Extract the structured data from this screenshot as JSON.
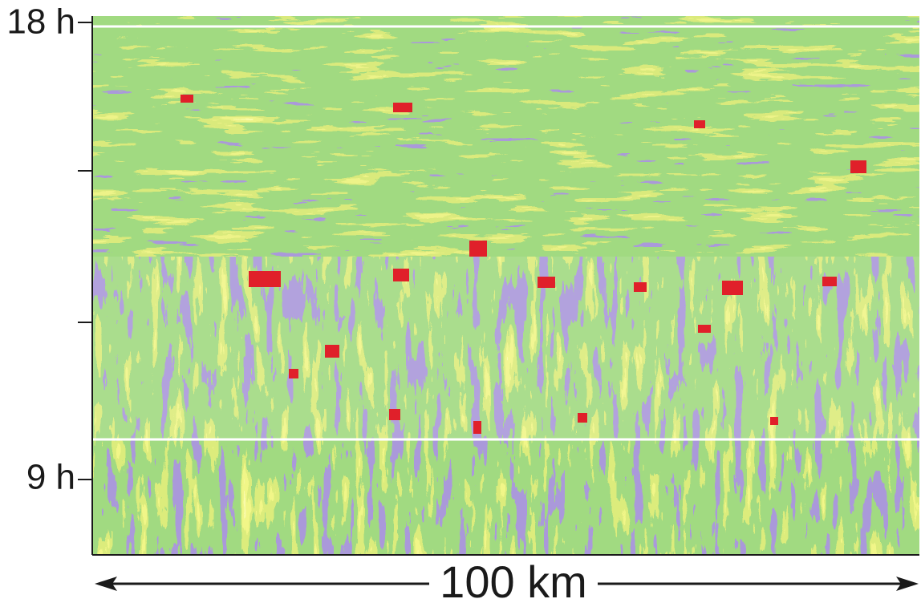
{
  "y_axis": {
    "top_label": "18 h",
    "bottom_label": "9 h"
  },
  "scale_bar": {
    "label": "100 km"
  }
}
